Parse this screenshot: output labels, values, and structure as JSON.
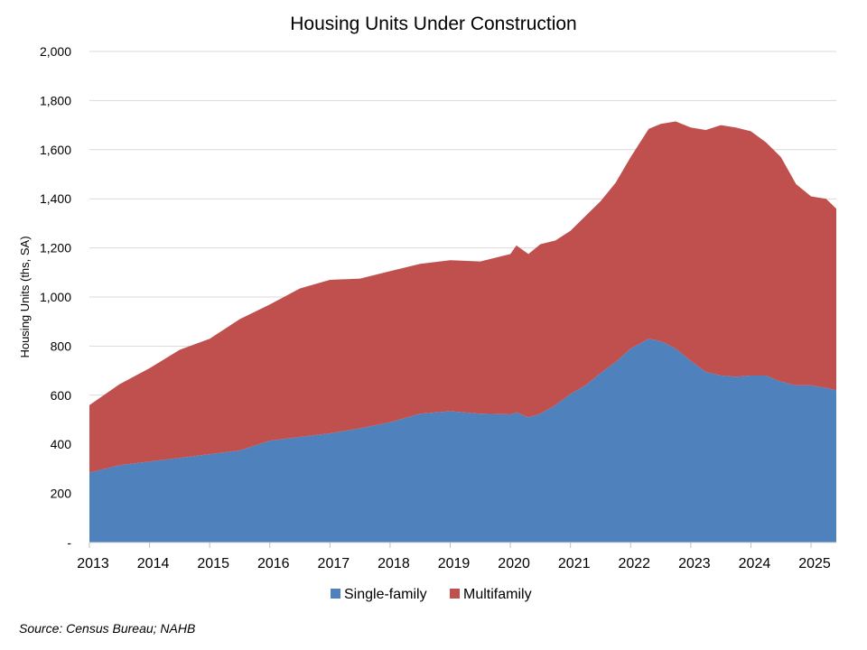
{
  "chart_data": {
    "type": "area",
    "stacked": true,
    "title": "Housing Units Under Construction",
    "ylabel": "Housing Units (ths, SA)",
    "xlabel": "",
    "ylim": [
      0,
      2000
    ],
    "yticks": [
      0,
      200,
      400,
      600,
      800,
      1000,
      1200,
      1400,
      1600,
      1800,
      2000
    ],
    "ytick_labels": [
      "-",
      "200",
      "400",
      "600",
      "800",
      "1,000",
      "1,200",
      "1,400",
      "1,600",
      "1,800",
      "2,000"
    ],
    "xlim": [
      2013.0,
      2025.42
    ],
    "xticks": [
      2013,
      2014,
      2015,
      2016,
      2017,
      2018,
      2019,
      2020,
      2021,
      2022,
      2023,
      2024,
      2025
    ],
    "xtick_labels": [
      "2013",
      "2014",
      "2015",
      "2016",
      "2017",
      "2018",
      "2019",
      "2020",
      "2021",
      "2022",
      "2023",
      "2024",
      "2025"
    ],
    "grid": "horizontal",
    "legend_position": "bottom",
    "series": [
      {
        "name": "Single-family",
        "color": "#4f81bd",
        "points": [
          [
            2013.0,
            285
          ],
          [
            2013.5,
            315
          ],
          [
            2014.0,
            330
          ],
          [
            2014.5,
            345
          ],
          [
            2015.0,
            360
          ],
          [
            2015.5,
            375
          ],
          [
            2016.0,
            415
          ],
          [
            2016.5,
            430
          ],
          [
            2017.0,
            445
          ],
          [
            2017.5,
            465
          ],
          [
            2018.0,
            490
          ],
          [
            2018.5,
            525
          ],
          [
            2019.0,
            535
          ],
          [
            2019.5,
            525
          ],
          [
            2020.0,
            522
          ],
          [
            2020.1,
            530
          ],
          [
            2020.3,
            510
          ],
          [
            2020.5,
            525
          ],
          [
            2020.75,
            560
          ],
          [
            2021.0,
            605
          ],
          [
            2021.25,
            640
          ],
          [
            2021.5,
            690
          ],
          [
            2021.75,
            735
          ],
          [
            2022.0,
            790
          ],
          [
            2022.3,
            830
          ],
          [
            2022.5,
            820
          ],
          [
            2022.75,
            790
          ],
          [
            2023.0,
            740
          ],
          [
            2023.25,
            695
          ],
          [
            2023.5,
            680
          ],
          [
            2023.75,
            675
          ],
          [
            2024.0,
            680
          ],
          [
            2024.25,
            680
          ],
          [
            2024.5,
            655
          ],
          [
            2024.75,
            640
          ],
          [
            2025.0,
            640
          ],
          [
            2025.25,
            630
          ],
          [
            2025.42,
            620
          ]
        ]
      },
      {
        "name": "Multifamily",
        "color": "#c0504d",
        "points": [
          [
            2013.0,
            275
          ],
          [
            2013.5,
            330
          ],
          [
            2014.0,
            380
          ],
          [
            2014.5,
            440
          ],
          [
            2015.0,
            470
          ],
          [
            2015.5,
            535
          ],
          [
            2016.0,
            555
          ],
          [
            2016.5,
            605
          ],
          [
            2017.0,
            625
          ],
          [
            2017.5,
            610
          ],
          [
            2018.0,
            615
          ],
          [
            2018.5,
            610
          ],
          [
            2019.0,
            615
          ],
          [
            2019.5,
            620
          ],
          [
            2020.0,
            653
          ],
          [
            2020.1,
            680
          ],
          [
            2020.3,
            665
          ],
          [
            2020.5,
            690
          ],
          [
            2020.75,
            670
          ],
          [
            2021.0,
            665
          ],
          [
            2021.25,
            690
          ],
          [
            2021.5,
            700
          ],
          [
            2021.75,
            730
          ],
          [
            2022.0,
            780
          ],
          [
            2022.3,
            855
          ],
          [
            2022.5,
            885
          ],
          [
            2022.75,
            925
          ],
          [
            2023.0,
            950
          ],
          [
            2023.25,
            985
          ],
          [
            2023.5,
            1020
          ],
          [
            2023.75,
            1015
          ],
          [
            2024.0,
            995
          ],
          [
            2024.25,
            950
          ],
          [
            2024.5,
            915
          ],
          [
            2024.75,
            820
          ],
          [
            2025.0,
            770
          ],
          [
            2025.25,
            770
          ],
          [
            2025.42,
            740
          ]
        ]
      }
    ],
    "source": "Source: Census Bureau; NAHB"
  }
}
